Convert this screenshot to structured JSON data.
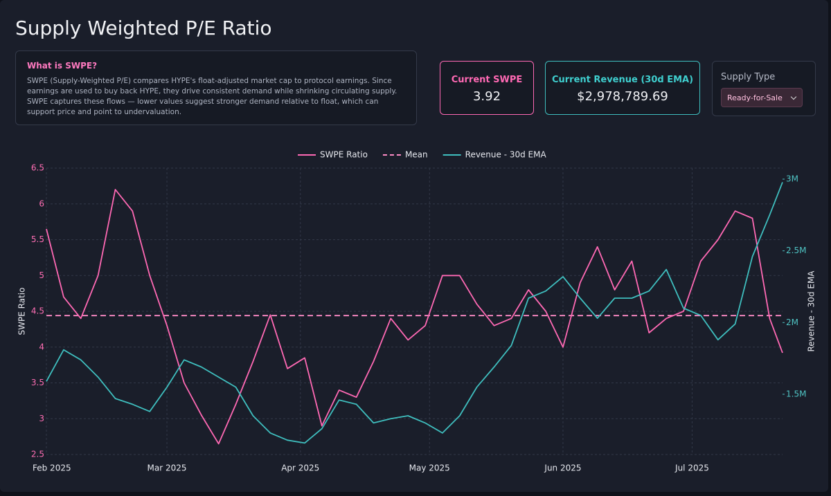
{
  "header": {
    "title": "Supply Weighted P/E Ratio"
  },
  "info": {
    "title": "What is SWPE?",
    "text": "SWPE (Supply-Weighted P/E) compares HYPE's float-adjusted market cap to protocol earnings. Since earnings are used to buy back HYPE, they drive consistent demand while shrinking circulating supply. SWPE captures these flows — lower values suggest stronger demand relative to float, which can support price and point to undervaluation."
  },
  "stats": [
    {
      "label": "Current SWPE",
      "value": "3.92"
    },
    {
      "label": "Current Revenue (30d EMA)",
      "value": "$2,978,789.69"
    }
  ],
  "supply_type": {
    "label": "Supply Type",
    "selected": "Ready-for-Sale"
  },
  "chart_data": {
    "type": "line",
    "y_label": "SWPE Ratio",
    "y2_label": "Revenue - 30d EMA",
    "x": [
      "2025-02-01",
      "2025-02-05",
      "2025-02-09",
      "2025-02-13",
      "2025-02-17",
      "2025-02-21",
      "2025-02-25",
      "2025-03-01",
      "2025-03-05",
      "2025-03-09",
      "2025-03-13",
      "2025-03-17",
      "2025-03-21",
      "2025-03-25",
      "2025-03-29",
      "2025-04-02",
      "2025-04-06",
      "2025-04-10",
      "2025-04-14",
      "2025-04-18",
      "2025-04-22",
      "2025-04-26",
      "2025-04-30",
      "2025-05-04",
      "2025-05-08",
      "2025-05-12",
      "2025-05-16",
      "2025-05-20",
      "2025-05-24",
      "2025-05-28",
      "2025-06-01",
      "2025-06-05",
      "2025-06-09",
      "2025-06-13",
      "2025-06-17",
      "2025-06-21",
      "2025-06-25",
      "2025-06-29",
      "2025-07-03",
      "2025-07-07",
      "2025-07-11",
      "2025-07-15",
      "2025-07-19",
      "2025-07-22"
    ],
    "series": [
      {
        "name": "SWPE Ratio",
        "color": "#ff69b4",
        "values": [
          5.65,
          4.7,
          4.4,
          5.0,
          6.2,
          5.9,
          5.0,
          4.3,
          3.5,
          3.05,
          2.65,
          3.2,
          3.8,
          4.45,
          3.7,
          3.85,
          2.9,
          3.4,
          3.3,
          3.8,
          4.4,
          4.1,
          4.3,
          5.0,
          5.0,
          4.6,
          4.3,
          4.4,
          4.8,
          4.5,
          4.0,
          4.9,
          5.4,
          4.8,
          5.2,
          4.2,
          4.4,
          4.5,
          5.2,
          5.5,
          5.9,
          5.8,
          4.4,
          3.92
        ]
      },
      {
        "name": "Revenue - 30d EMA",
        "color": "#3fbfbf",
        "axis": "y2",
        "values": [
          1590000,
          1810000,
          1740000,
          1620000,
          1470000,
          1430000,
          1380000,
          1550000,
          1740000,
          1690000,
          1620000,
          1550000,
          1350000,
          1230000,
          1180000,
          1160000,
          1260000,
          1460000,
          1430000,
          1300000,
          1330000,
          1350000,
          1300000,
          1230000,
          1350000,
          1550000,
          1690000,
          1840000,
          2170000,
          2220000,
          2320000,
          2170000,
          2030000,
          2170000,
          2170000,
          2220000,
          2370000,
          2100000,
          2050000,
          1880000,
          1990000,
          2460000,
          2750000,
          2978790
        ]
      }
    ],
    "mean": {
      "name": "Mean",
      "value": 4.44,
      "color": "#ff8cc6"
    },
    "xlim": [
      "2025-02-01",
      "2025-07-22"
    ],
    "xticks": [
      {
        "value": "2025-02-01",
        "label": "Feb 2025"
      },
      {
        "value": "2025-03-01",
        "label": "Mar 2025"
      },
      {
        "value": "2025-04-01",
        "label": "Apr 2025"
      },
      {
        "value": "2025-05-01",
        "label": "May 2025"
      },
      {
        "value": "2025-06-01",
        "label": "Jun 2025"
      },
      {
        "value": "2025-07-01",
        "label": "Jul 2025"
      }
    ],
    "ylim": [
      2.5,
      6.5
    ],
    "yticks": [
      2.5,
      3,
      3.5,
      4,
      4.5,
      5,
      5.5,
      6,
      6.5
    ],
    "y2lim": [
      1080000,
      3077000
    ],
    "y2ticks": [
      {
        "value": 1500000,
        "label": "1.5M"
      },
      {
        "value": 2000000,
        "label": "2M"
      },
      {
        "value": 2500000,
        "label": "2.5M"
      },
      {
        "value": 3000000,
        "label": "3M"
      }
    ],
    "grid": true
  }
}
